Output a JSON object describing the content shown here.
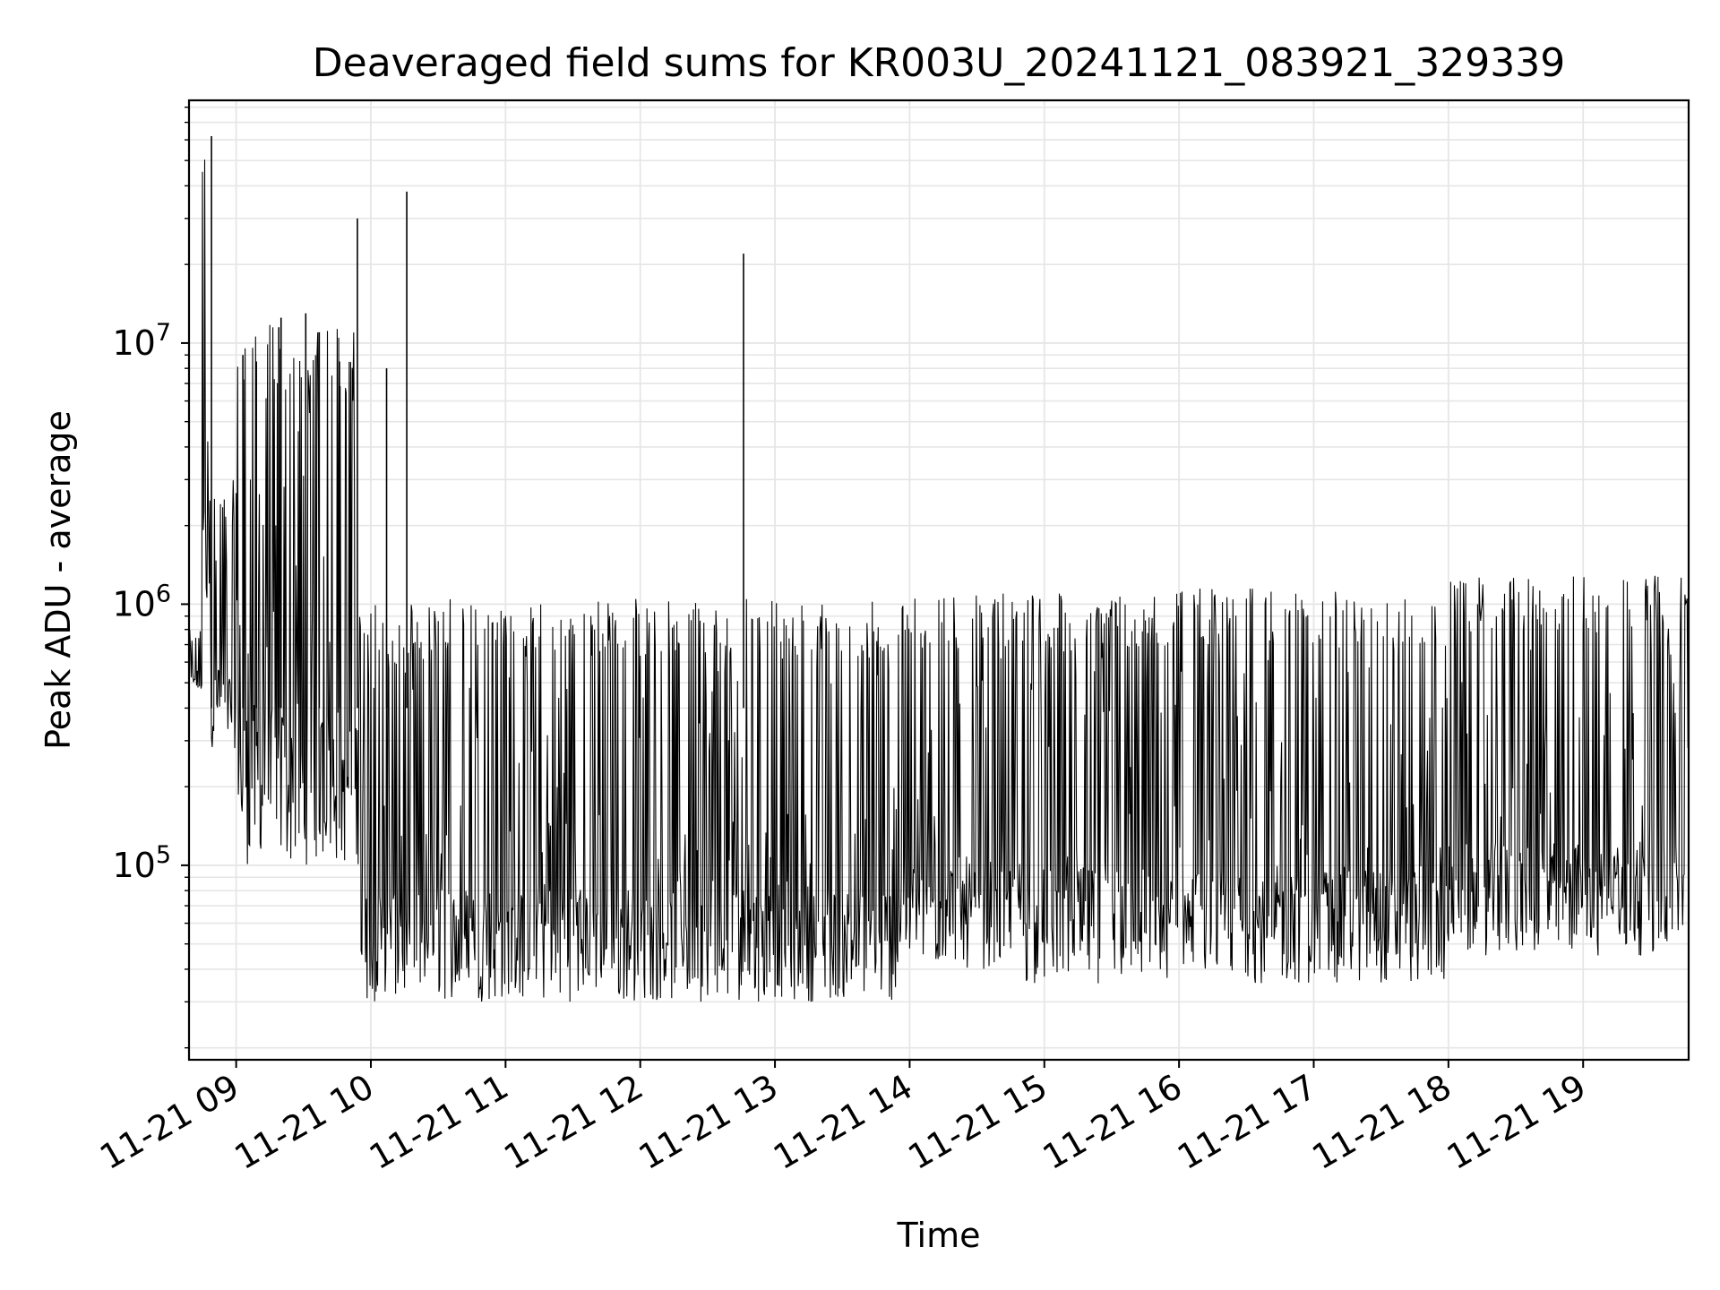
{
  "chart_data": {
    "type": "line",
    "title": "Deaveraged field sums for KR003U_20241121_083921_329339",
    "xlabel": "Time",
    "ylabel": "Peak ADU - average",
    "yscale": "log",
    "grid": true,
    "line_color": "#000000",
    "grid_color": "#e6e6e6",
    "xlim": [
      "2024-11-21 08:39",
      "2024-11-21 19:47"
    ],
    "ylim": [
      18000,
      85000000
    ],
    "x_ticks": [
      {
        "value": "2024-11-21 09:00",
        "label": "11-21 09"
      },
      {
        "value": "2024-11-21 10:00",
        "label": "11-21 10"
      },
      {
        "value": "2024-11-21 11:00",
        "label": "11-21 11"
      },
      {
        "value": "2024-11-21 12:00",
        "label": "11-21 12"
      },
      {
        "value": "2024-11-21 13:00",
        "label": "11-21 13"
      },
      {
        "value": "2024-11-21 14:00",
        "label": "11-21 14"
      },
      {
        "value": "2024-11-21 15:00",
        "label": "11-21 15"
      },
      {
        "value": "2024-11-21 16:00",
        "label": "11-21 16"
      },
      {
        "value": "2024-11-21 17:00",
        "label": "11-21 17"
      },
      {
        "value": "2024-11-21 18:00",
        "label": "11-21 18"
      },
      {
        "value": "2024-11-21 19:00",
        "label": "11-21 19"
      }
    ],
    "y_ticks": [
      {
        "value": 100000,
        "base": "10",
        "exp": "5"
      },
      {
        "value": 1000000,
        "base": "10",
        "exp": "6"
      },
      {
        "value": 10000000,
        "base": "10",
        "exp": "7"
      }
    ],
    "segments": [
      {
        "start": "2024-11-21 08:39",
        "end": "2024-11-21 08:45",
        "low": 450000,
        "high": 800000
      },
      {
        "start": "2024-11-21 08:45",
        "end": "2024-11-21 08:49",
        "low": 700000,
        "high": 62000000
      },
      {
        "start": "2024-11-21 08:49",
        "end": "2024-11-21 09:00",
        "low": 280000,
        "high": 3000000
      },
      {
        "start": "2024-11-21 09:00",
        "end": "2024-11-21 09:55",
        "low": 100000,
        "high": 12000000
      },
      {
        "start": "2024-11-21 09:55",
        "end": "2024-11-21 10:30",
        "low": 30000,
        "high": 1000000
      },
      {
        "start": "2024-11-21 10:30",
        "end": "2024-11-21 13:55",
        "low": 30000,
        "high": 1050000
      },
      {
        "start": "2024-11-21 13:55",
        "end": "2024-11-21 14:50",
        "low": 40000,
        "high": 1100000
      },
      {
        "start": "2024-11-21 14:50",
        "end": "2024-11-21 15:45",
        "low": 35000,
        "high": 1100000
      },
      {
        "start": "2024-11-21 15:45",
        "end": "2024-11-21 18:00",
        "low": 35000,
        "high": 1150000
      },
      {
        "start": "2024-11-21 18:00",
        "end": "2024-11-21 19:47",
        "low": 45000,
        "high": 1300000
      }
    ],
    "spikes": [
      {
        "x": "2024-11-21 08:49",
        "y": 62000000
      },
      {
        "x": "2024-11-21 09:03",
        "y": 9000000
      },
      {
        "x": "2024-11-21 09:09",
        "y": 8500000
      },
      {
        "x": "2024-11-21 09:19",
        "y": 11500000
      },
      {
        "x": "2024-11-21 09:20",
        "y": 12500000
      },
      {
        "x": "2024-11-21 09:31",
        "y": 13000000
      },
      {
        "x": "2024-11-21 09:37",
        "y": 11000000
      },
      {
        "x": "2024-11-21 09:46",
        "y": 8500000
      },
      {
        "x": "2024-11-21 09:54",
        "y": 30000000
      },
      {
        "x": "2024-11-21 10:07",
        "y": 8000000
      },
      {
        "x": "2024-11-21 10:16",
        "y": 38000000
      },
      {
        "x": "2024-11-21 12:46",
        "y": 22000000
      }
    ]
  }
}
